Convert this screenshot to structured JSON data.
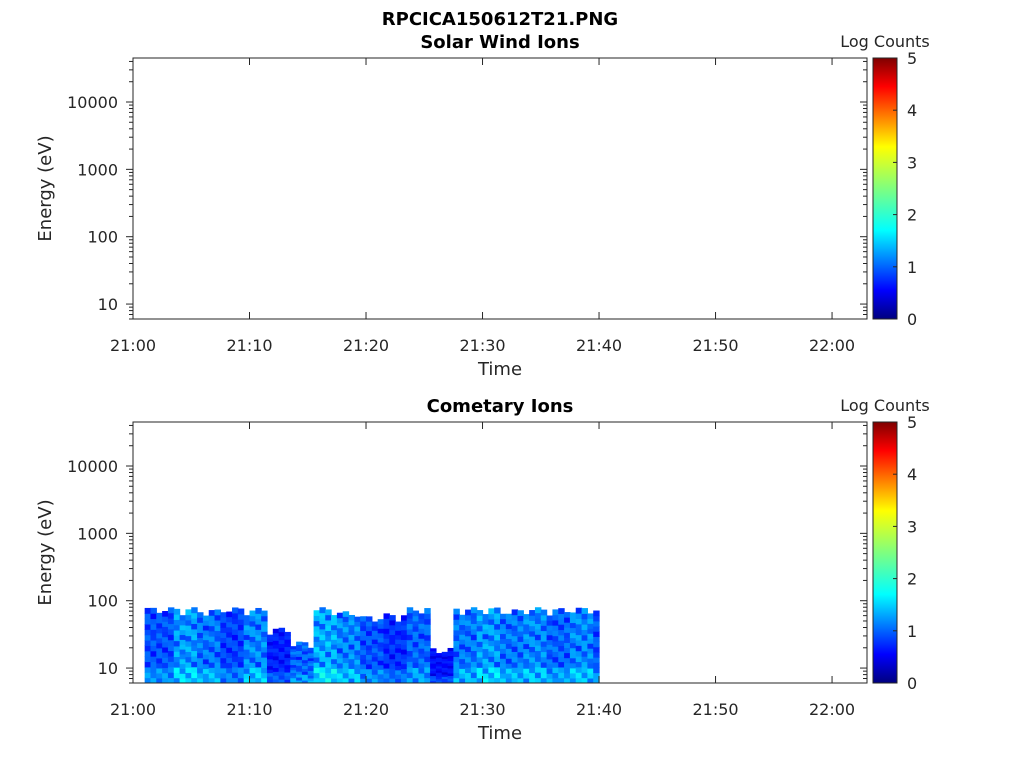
{
  "figure": {
    "title": "RPCICA150612T21.PNG"
  },
  "chart_data": [
    {
      "type": "heatmap",
      "title": "Solar Wind Ions",
      "xlabel": "Time",
      "ylabel": "Energy (eV)",
      "x_ticks": [
        "21:00",
        "21:10",
        "21:20",
        "21:30",
        "21:40",
        "21:50",
        "22:00"
      ],
      "y_ticks": [
        "10",
        "100",
        "1000",
        "10000"
      ],
      "yscale": "log",
      "ylim": [
        6,
        45000
      ],
      "xlim": [
        "21:00",
        "22:03"
      ],
      "colorbar": {
        "label": "Log Counts",
        "ticks": [
          "0",
          "1",
          "2",
          "3",
          "4",
          "5"
        ],
        "range": [
          0,
          5
        ],
        "colormap": "jet"
      },
      "data": []
    },
    {
      "type": "heatmap",
      "title": "Cometary Ions",
      "xlabel": "Time",
      "ylabel": "Energy (eV)",
      "x_ticks": [
        "21:00",
        "21:10",
        "21:20",
        "21:30",
        "21:40",
        "21:50",
        "22:00"
      ],
      "y_ticks": [
        "10",
        "100",
        "1000",
        "10000"
      ],
      "yscale": "log",
      "ylim": [
        6,
        45000
      ],
      "xlim": [
        "21:00",
        "22:03"
      ],
      "colorbar": {
        "label": "Log Counts",
        "ticks": [
          "0",
          "1",
          "2",
          "3",
          "4",
          "5"
        ],
        "range": [
          0,
          5
        ],
        "colormap": "jet"
      },
      "data_time_range": [
        "21:01",
        "21:40"
      ],
      "data_energy_range": [
        6,
        80
      ],
      "data": [
        {
          "time": "21:02",
          "max_energy": 80,
          "level": 1.2
        },
        {
          "time": "21:04",
          "max_energy": 80,
          "level": 1.6
        },
        {
          "time": "21:06",
          "max_energy": 75,
          "level": 1.4
        },
        {
          "time": "21:08",
          "max_energy": 80,
          "level": 1.1
        },
        {
          "time": "21:10",
          "max_energy": 78,
          "level": 1.5
        },
        {
          "time": "21:12",
          "max_energy": 40,
          "level": 0.9
        },
        {
          "time": "21:14",
          "max_energy": 25,
          "level": 1.3
        },
        {
          "time": "21:16",
          "max_energy": 80,
          "level": 1.7
        },
        {
          "time": "21:18",
          "max_energy": 70,
          "level": 1.5
        },
        {
          "time": "21:20",
          "max_energy": 60,
          "level": 1.2
        },
        {
          "time": "21:22",
          "max_energy": 65,
          "level": 1.0
        },
        {
          "time": "21:24",
          "max_energy": 80,
          "level": 1.3
        },
        {
          "time": "21:26",
          "max_energy": 20,
          "level": 0.8
        },
        {
          "time": "21:28",
          "max_energy": 80,
          "level": 1.4
        },
        {
          "time": "21:30",
          "max_energy": 80,
          "level": 1.6
        },
        {
          "time": "21:32",
          "max_energy": 75,
          "level": 1.4
        },
        {
          "time": "21:34",
          "max_energy": 80,
          "level": 1.5
        },
        {
          "time": "21:36",
          "max_energy": 78,
          "level": 1.3
        },
        {
          "time": "21:38",
          "max_energy": 80,
          "level": 1.5
        },
        {
          "time": "21:40",
          "max_energy": 80,
          "level": 1.2
        }
      ]
    }
  ]
}
